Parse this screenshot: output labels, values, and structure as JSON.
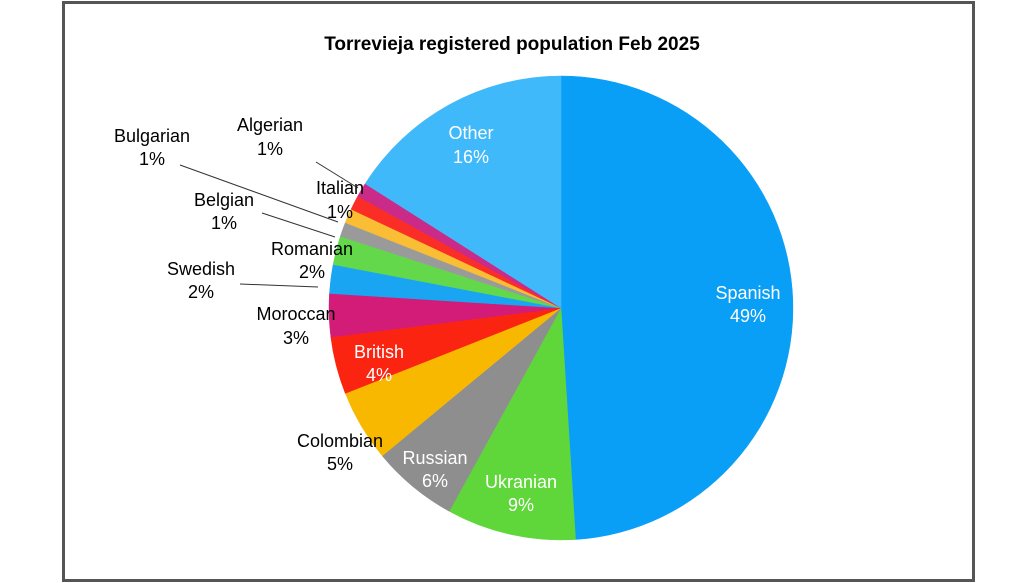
{
  "chart_data": {
    "type": "pie",
    "title": "Torrevieja registered population Feb 2025",
    "slices": [
      {
        "label": "Spanish",
        "pct": "49%",
        "value": 49,
        "color": "#0a9ff7",
        "label_color": "#ffffff"
      },
      {
        "label": "Ukranian",
        "pct": "9%",
        "value": 9,
        "color": "#5fd73a",
        "label_color": "#ffffff"
      },
      {
        "label": "Russian",
        "pct": "6%",
        "value": 6,
        "color": "#8e8e8e",
        "label_color": "#ffffff"
      },
      {
        "label": "Colombian",
        "pct": "5%",
        "value": 5,
        "color": "#f9b800",
        "label_color": "#000000"
      },
      {
        "label": "British",
        "pct": "4%",
        "value": 4,
        "color": "#fb2410",
        "label_color": "#ffffff"
      },
      {
        "label": "Moroccan",
        "pct": "3%",
        "value": 3,
        "color": "#d21c78",
        "label_color": "#000000"
      },
      {
        "label": "Swedish",
        "pct": "2%",
        "value": 2,
        "color": "#1aa5f3",
        "label_color": "#000000"
      },
      {
        "label": "Romanian",
        "pct": "2%",
        "value": 2,
        "color": "#63d84a",
        "label_color": "#000000"
      },
      {
        "label": "Belgian",
        "pct": "1%",
        "value": 1,
        "color": "#9a9a9a",
        "label_color": "#000000"
      },
      {
        "label": "Bulgarian",
        "pct": "1%",
        "value": 1,
        "color": "#f9be33",
        "label_color": "#000000"
      },
      {
        "label": "Italian",
        "pct": "1%",
        "value": 1,
        "color": "#fb2d27",
        "label_color": "#000000"
      },
      {
        "label": "Algerian",
        "pct": "1%",
        "value": 1,
        "color": "#ca2a88",
        "label_color": "#000000"
      },
      {
        "label": "Other",
        "pct": "16%",
        "value": 16,
        "color": "#40b9fb",
        "label_color": "#ffffff"
      }
    ]
  }
}
